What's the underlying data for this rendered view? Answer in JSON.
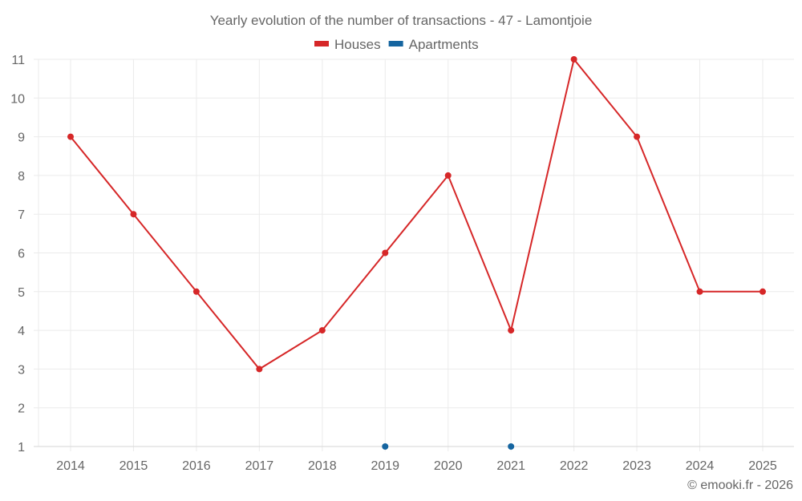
{
  "chart_data": {
    "type": "line",
    "title": "Yearly evolution of the number of transactions - 47 - Lamontjoie",
    "categories": [
      "2014",
      "2015",
      "2016",
      "2017",
      "2018",
      "2019",
      "2020",
      "2021",
      "2022",
      "2023",
      "2024",
      "2025"
    ],
    "series": [
      {
        "name": "Houses",
        "color": "#d62728",
        "values": [
          9,
          7,
          5,
          3,
          4,
          6,
          8,
          4,
          11,
          9,
          5,
          5
        ]
      },
      {
        "name": "Apartments",
        "color": "#1565a0",
        "values": [
          null,
          null,
          null,
          null,
          null,
          1,
          null,
          1,
          null,
          null,
          null,
          null
        ]
      }
    ],
    "yticks": [
      1,
      2,
      3,
      4,
      5,
      6,
      7,
      8,
      9,
      10,
      11
    ],
    "ylim": [
      1,
      11
    ],
    "xlabel": "",
    "ylabel": "",
    "grid": true,
    "legend": "top-center"
  },
  "credit": "© emooki.fr - 2026"
}
